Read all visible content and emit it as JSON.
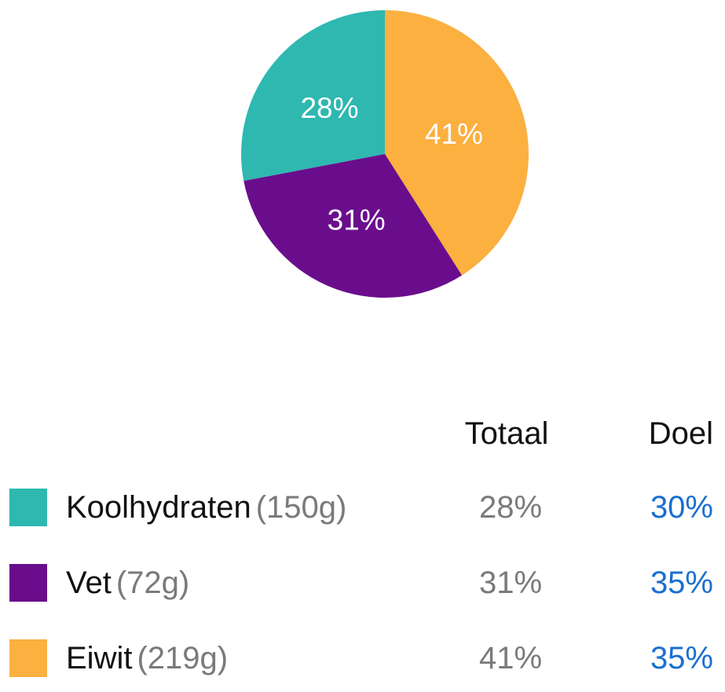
{
  "chart_data": {
    "type": "pie",
    "slices": [
      {
        "label": "Koolhydraten",
        "value": 28,
        "value_label": "28%",
        "color": "#2eb8b0"
      },
      {
        "label": "Vet",
        "value": 31,
        "value_label": "31%",
        "color": "#6a0d8c"
      },
      {
        "label": "Eiwit",
        "value": 41,
        "value_label": "41%",
        "color": "#fbb040"
      }
    ]
  },
  "table": {
    "headers": {
      "total": "Totaal",
      "goal": "Doel"
    },
    "rows": [
      {
        "name": "Koolhydraten",
        "grams": "(150g)",
        "total": "28%",
        "goal": "30%",
        "color": "#2eb8b0"
      },
      {
        "name": "Vet",
        "grams": "(72g)",
        "total": "31%",
        "goal": "35%",
        "color": "#6a0d8c"
      },
      {
        "name": "Eiwit",
        "grams": "(219g)",
        "total": "41%",
        "goal": "35%",
        "color": "#fbb040"
      }
    ]
  }
}
